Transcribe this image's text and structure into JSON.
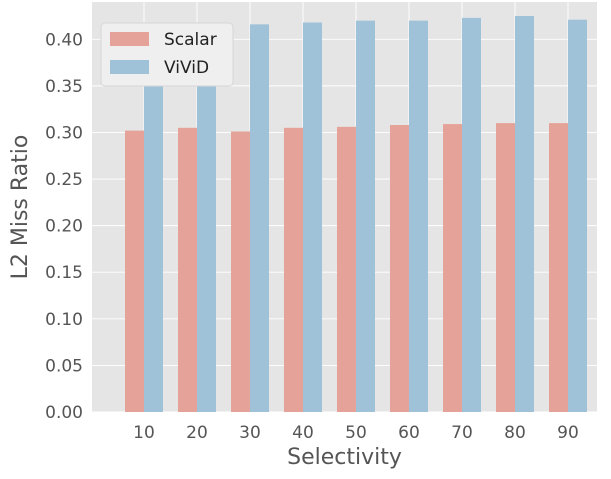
{
  "chart_data": {
    "type": "bar",
    "xlabel": "Selectivity",
    "ylabel": "L2 Miss Ratio",
    "categories": [
      "10",
      "20",
      "30",
      "40",
      "50",
      "60",
      "70",
      "80",
      "90"
    ],
    "ylim": [
      0,
      0.44
    ],
    "yticks": [
      0.0,
      0.05,
      0.1,
      0.15,
      0.2,
      0.25,
      0.3,
      0.35,
      0.4
    ],
    "ytick_labels": [
      "0.00",
      "0.05",
      "0.10",
      "0.15",
      "0.20",
      "0.25",
      "0.30",
      "0.35",
      "0.40"
    ],
    "grid": true,
    "legend_position": "top-left",
    "series": [
      {
        "name": "Scalar",
        "color": "#E5A298",
        "values": [
          0.302,
          0.305,
          0.301,
          0.305,
          0.306,
          0.308,
          0.309,
          0.31,
          0.31
        ]
      },
      {
        "name": "ViViD",
        "color": "#9FC2D8",
        "values": [
          0.413,
          0.414,
          0.416,
          0.418,
          0.42,
          0.42,
          0.423,
          0.425,
          0.421
        ]
      }
    ]
  },
  "colors": {
    "plot_background": "#E5E5E5",
    "grid": "#FFFFFF",
    "legend_background": "#EFEFEF"
  }
}
